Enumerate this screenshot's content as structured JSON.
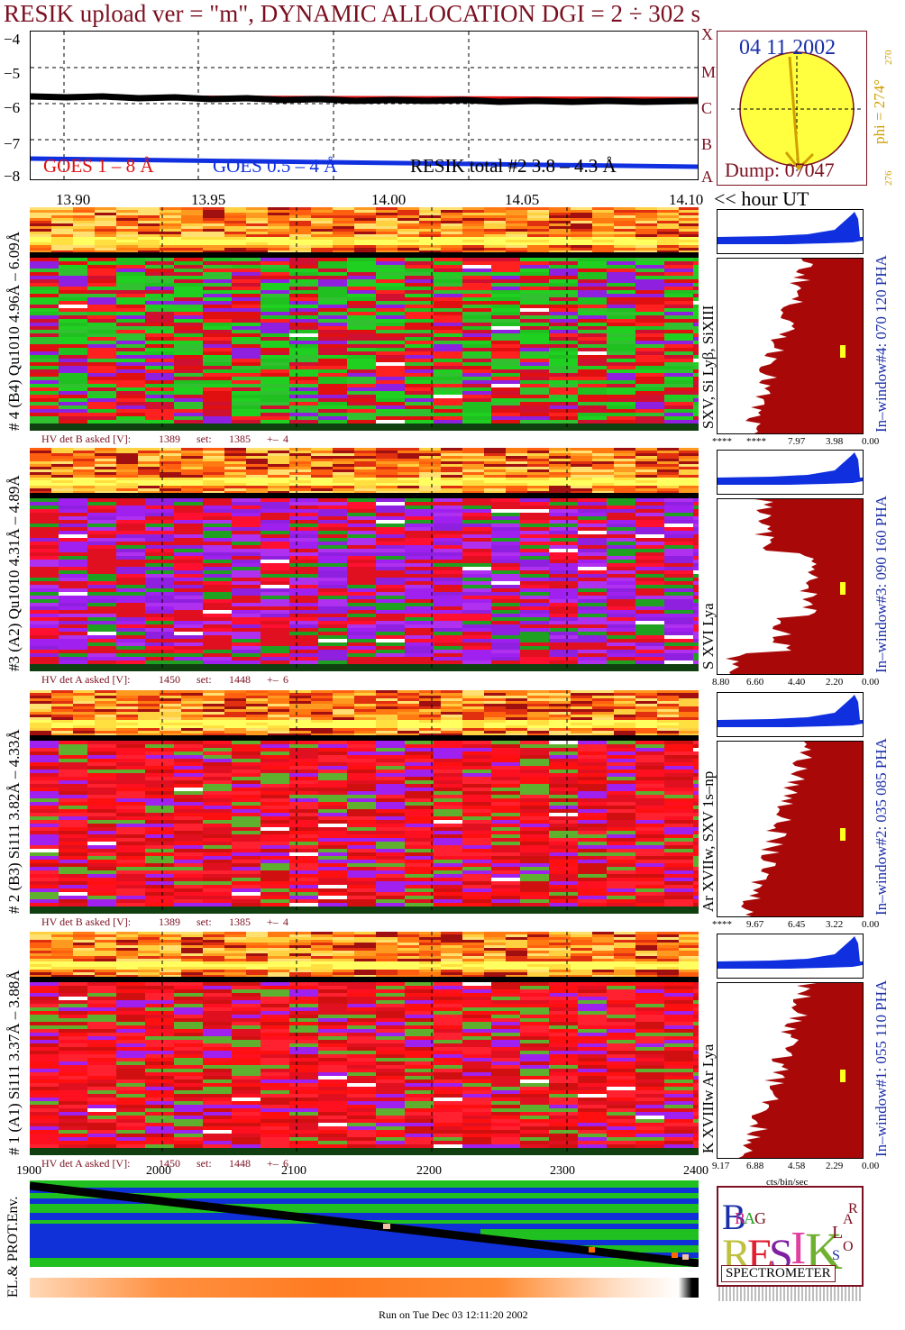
{
  "title": "RESIK upload ver = \"m\", DYNAMIC ALLOCATION  DGI =   2 ÷ 302 s",
  "goes_plot": {
    "y_ticks": [
      "−4",
      "−5",
      "−6",
      "−7",
      "−8"
    ],
    "legend": [
      "GOES 1 – 8 Å",
      "GOES 0.5 – 4 Å",
      "RESIK total #2  3.8 – 4.3 Å"
    ],
    "colors": {
      "goes_long": "#e01010",
      "goes_short": "#1030e0",
      "resik": "#000000"
    }
  },
  "time_axis": {
    "ticks": [
      "13.90",
      "13.95",
      "14.00",
      "14.05",
      "14.10"
    ],
    "unit_label": "<< hour UT"
  },
  "sun_panel": {
    "date": "04 11 2002",
    "dump": "Dump: 07047",
    "left_letters": [
      "X",
      "M",
      "C",
      "B",
      "A"
    ],
    "phi_text": "phi = 274°",
    "phi_top": "270",
    "phi_bottom": "276"
  },
  "channels": [
    {
      "label": "# 4 (B4) Qu1010 4.96Å – 6.09Å",
      "lines": "SXV,  Si Lyβ, SiXIII",
      "window": "In–window#4:  070 120 PHA",
      "hv": [
        "HV det B asked [V]:",
        "1389",
        "set:",
        "1385",
        "+–",
        "4"
      ],
      "ticks": [
        "****",
        "****",
        "7.97",
        "3.98",
        "0.00"
      ],
      "base": "green"
    },
    {
      "label": "#3 (A2) Qu1010  4.31Å – 4.89Å",
      "lines": "S XVI Lya",
      "window": "In–window#3:  090 160 PHA",
      "hv": [
        "HV det A asked [V]:",
        "1450",
        "set:",
        "1448",
        "+–",
        "6"
      ],
      "ticks": [
        "8.80",
        "6.60",
        "4.40",
        "2.20",
        "0.00"
      ],
      "base": "purple"
    },
    {
      "label": "# 2 (B3) Si111  3.82Å – 4.33Å",
      "lines": "Ar XVIIw,  SXV 1s–np",
      "window": "In–window#2:  035 085 PHA",
      "hv": [
        "HV det B asked [V]:",
        "1389",
        "set:",
        "1385",
        "+–",
        "4"
      ],
      "ticks": [
        "****",
        "9.67",
        "6.45",
        "3.22",
        "0.00"
      ],
      "base": "red"
    },
    {
      "label": "# 1 (A1) Si111  3.37Å – 3.88Å",
      "lines": "K XVIIIw  Ar Lya",
      "window": "In–window#1:  055 110 PHA",
      "hv": [
        "HV det A asked [V]:",
        "1450",
        "set:",
        "1448",
        "+–",
        "6"
      ],
      "ticks": [
        "9.17",
        "6.88",
        "4.58",
        "2.29",
        "0.00"
      ],
      "base": "red"
    }
  ],
  "cts_label": "cts/bin/sec",
  "env_panel": {
    "ticks": [
      "1900",
      "2000",
      "2100",
      "2200",
      "2300",
      "2400"
    ],
    "label": "EL.& PROT.Env."
  },
  "logo": {
    "letters": [
      "B",
      "R",
      "A",
      "G",
      "R",
      "E",
      "S",
      "I",
      "K",
      "S",
      "O",
      "L",
      "A",
      "R"
    ],
    "caption": "SPECTROMETER"
  },
  "footer": "Run on Tue Dec 03 12:11:20 2002"
}
